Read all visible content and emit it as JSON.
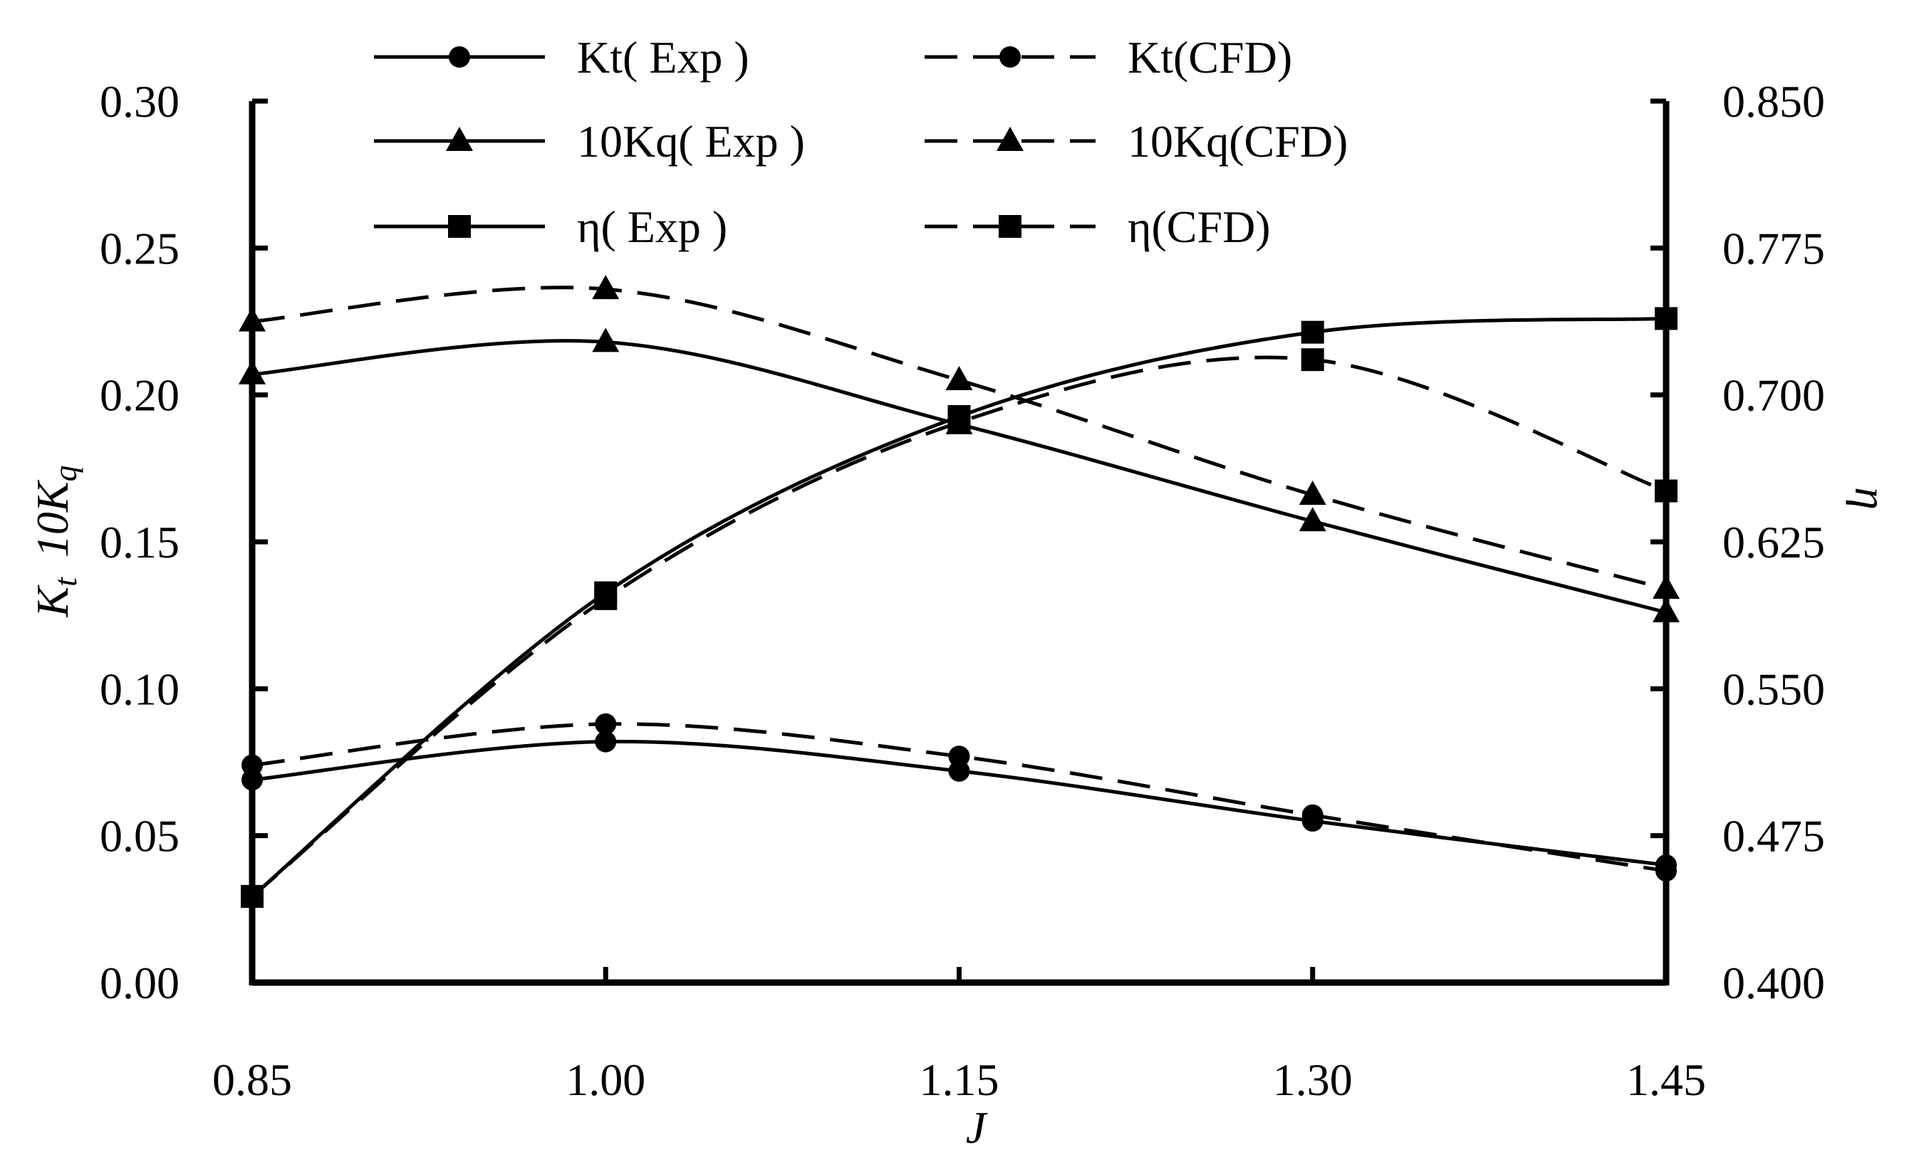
{
  "chart_data": {
    "type": "line",
    "title": "",
    "xlabel": "J",
    "ylabel_left_parts": [
      "K",
      "t",
      "10K",
      "q"
    ],
    "ylabel_right": "η",
    "x": [
      0.85,
      1.0,
      1.15,
      1.3,
      1.45
    ],
    "x_tick_labels": [
      "0.85",
      "1.00",
      "1.15",
      "1.30",
      "1.45"
    ],
    "xlim": [
      0.85,
      1.45
    ],
    "ylim_left": [
      0.0,
      0.3
    ],
    "y_left_tick_labels": [
      "0.00",
      "0.05",
      "0.10",
      "0.15",
      "0.20",
      "0.25",
      "0.30"
    ],
    "ylim_right": [
      0.4,
      0.85
    ],
    "y_right_tick_labels": [
      "0.400",
      "0.475",
      "0.550",
      "0.625",
      "0.700",
      "0.775",
      "0.850"
    ],
    "grid": false,
    "legend_position": "top",
    "series": [
      {
        "name": "Kt( Exp )",
        "axis": "left",
        "marker": "circle",
        "dash": "solid",
        "values": [
          0.069,
          0.082,
          0.072,
          0.055,
          0.04
        ]
      },
      {
        "name": "Kt(CFD)",
        "axis": "left",
        "marker": "circle",
        "dash": "dashed",
        "values": [
          0.074,
          0.088,
          0.077,
          0.057,
          0.038
        ]
      },
      {
        "name": "10Kq( Exp )",
        "axis": "left",
        "marker": "triangle",
        "dash": "solid",
        "values": [
          0.207,
          0.218,
          0.19,
          0.157,
          0.126
        ]
      },
      {
        "name": "10Kq(CFD)",
        "axis": "left",
        "marker": "triangle",
        "dash": "dashed",
        "values": [
          0.225,
          0.236,
          0.205,
          0.166,
          0.134
        ]
      },
      {
        "name": "η( Exp )",
        "axis": "right",
        "marker": "square",
        "dash": "solid",
        "values": [
          0.444,
          0.599,
          0.689,
          0.732,
          0.739
        ]
      },
      {
        "name": "η(CFD)",
        "axis": "right",
        "marker": "square",
        "dash": "dashed",
        "values": [
          0.444,
          0.596,
          0.686,
          0.718,
          0.651
        ]
      }
    ]
  }
}
